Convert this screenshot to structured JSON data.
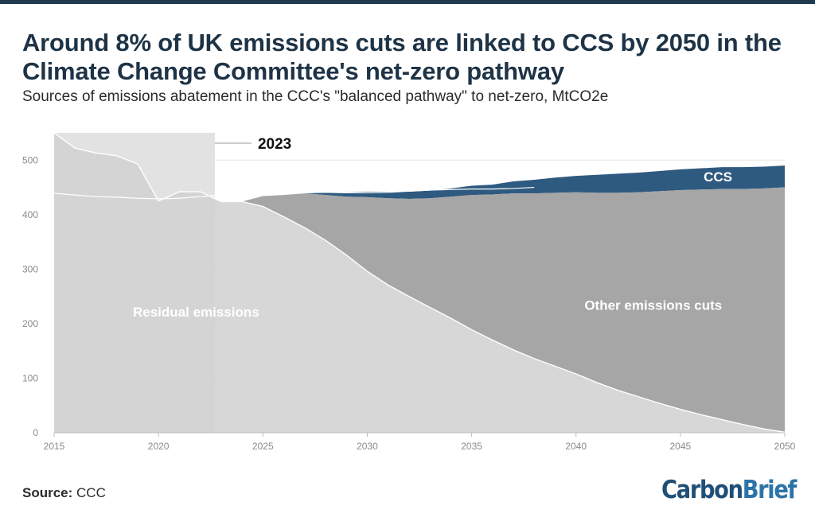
{
  "header": {
    "title": "Around 8% of UK emissions cuts are linked to CCS by 2050 in the Climate Change Committee's net-zero pathway",
    "subtitle": "Sources of emissions abatement in the CCC's \"balanced pathway\" to net-zero, MtCO2e"
  },
  "footer": {
    "source_label": "Source:",
    "source_value": "CCC",
    "brand_part1": "Carbon",
    "brand_part2": "Brief"
  },
  "colors": {
    "residual": "#d3d3d3",
    "other_cuts": "#a6a6a6",
    "ccs": "#2f5a80",
    "historic_shade": "#e2e2e2",
    "title": "#1e3346",
    "axis_text": "#8a8a8a",
    "gridline": "#e6e6e6"
  },
  "chart_data": {
    "type": "area",
    "stacked": true,
    "x": [
      2015,
      2016,
      2017,
      2018,
      2019,
      2020,
      2021,
      2022,
      2023,
      2024,
      2025,
      2026,
      2027,
      2028,
      2029,
      2030,
      2031,
      2032,
      2033,
      2034,
      2035,
      2036,
      2037,
      2038,
      2039,
      2040,
      2041,
      2042,
      2043,
      2044,
      2045,
      2046,
      2047,
      2048,
      2049,
      2050
    ],
    "series": [
      {
        "name": "Residual emissions",
        "values": [
          550,
          522,
          513,
          508,
          493,
          425,
          442,
          442,
          424,
          424,
          415,
          396,
          376,
          353,
          326,
          296,
          271,
          250,
          230,
          210,
          189,
          170,
          152,
          136,
          122,
          108,
          92,
          78,
          66,
          54,
          43,
          33,
          24,
          15,
          7,
          1
        ]
      },
      {
        "name": "Other emissions cuts",
        "values": [
          0,
          0,
          0,
          0,
          0,
          0,
          0,
          0,
          0,
          0,
          19,
          40,
          63,
          83,
          107,
          136,
          159,
          179,
          200,
          223,
          247,
          267,
          287,
          303,
          318,
          333,
          348,
          362,
          375,
          389,
          402,
          413,
          423,
          432,
          441,
          449
        ]
      },
      {
        "name": "CCS",
        "values": [
          0,
          0,
          0,
          0,
          0,
          0,
          0,
          0,
          0,
          0,
          0,
          0,
          0,
          5,
          8,
          10,
          12,
          13,
          14,
          15,
          17,
          18,
          22,
          25,
          28,
          30,
          33,
          35,
          36,
          37,
          38,
          39,
          40,
          40,
          40,
          40
        ]
      }
    ],
    "annotations": [
      {
        "text": "2023",
        "x": 2022.7
      }
    ],
    "series_labels": {
      "residual": "Residual emissions",
      "other": "Other emissions cuts",
      "ccs": "CCS"
    },
    "highlight_until": 2022.7,
    "xlim": [
      2015,
      2050
    ],
    "ylim": [
      0,
      550
    ],
    "x_ticks": [
      2015,
      2020,
      2025,
      2030,
      2035,
      2040,
      2045,
      2050
    ],
    "y_ticks": [
      0,
      100,
      200,
      300,
      400,
      500
    ],
    "grid": true
  }
}
